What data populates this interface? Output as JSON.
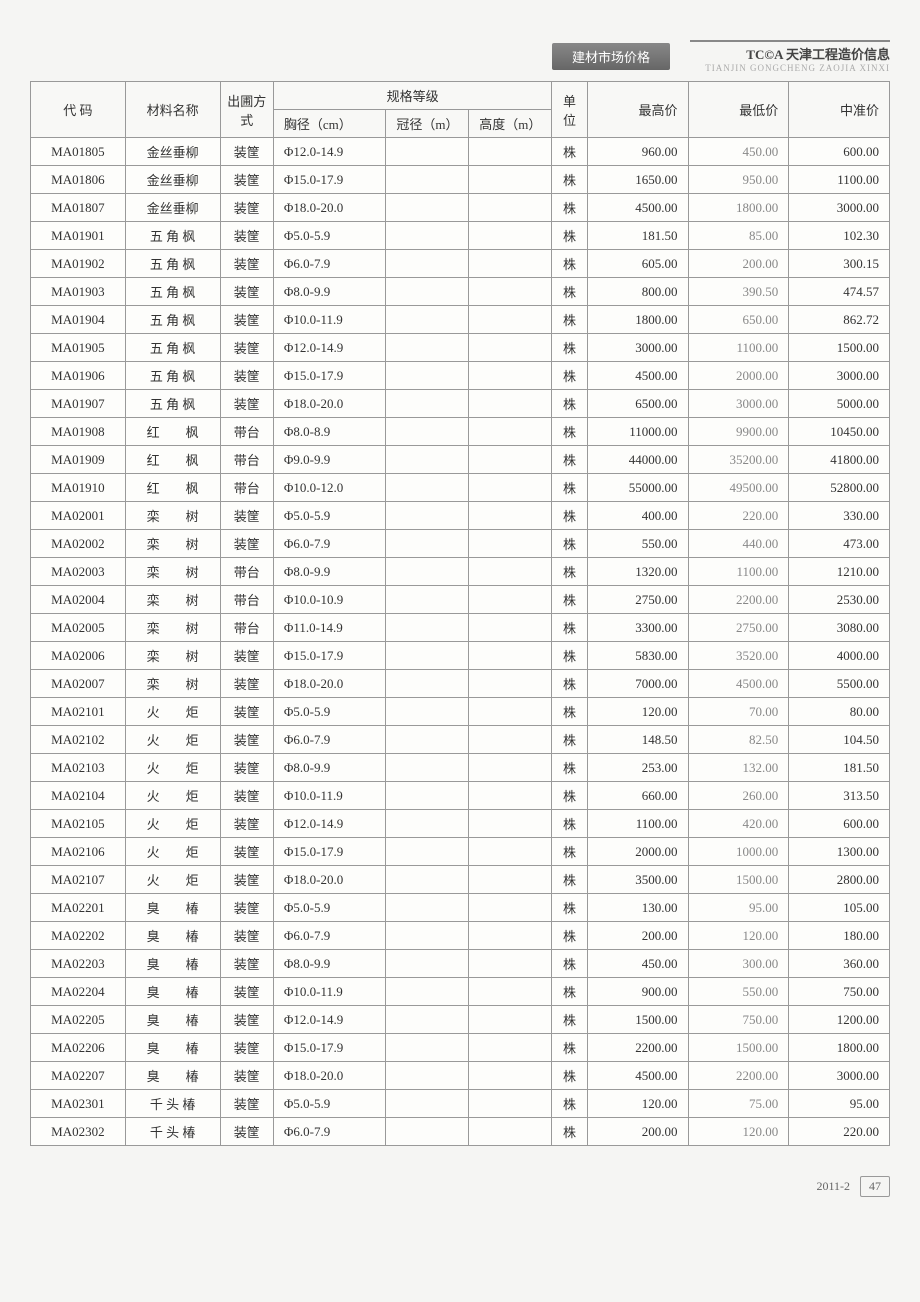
{
  "header": {
    "tab_label": "建材市场价格",
    "brand": "TC©A 天津工程造价信息",
    "brand_sub": "TIANJIN GONGCHENG ZAOJIA XINXI"
  },
  "table": {
    "headers": {
      "code": "代 码",
      "name": "材料名称",
      "method": "出圃方式",
      "spec_group": "规格等级",
      "spec1": "胸径（cm）",
      "spec2": "冠径（m）",
      "spec3": "高度（m）",
      "unit": "单位",
      "high": "最高价",
      "low": "最低价",
      "mid": "中准价"
    },
    "rows": [
      {
        "code": "MA01805",
        "name": "金丝垂柳",
        "name_spaced": false,
        "method": "装筐",
        "spec1": "Φ12.0-14.9",
        "unit": "株",
        "high": "960.00",
        "low": "450.00",
        "mid": "600.00"
      },
      {
        "code": "MA01806",
        "name": "金丝垂柳",
        "name_spaced": false,
        "method": "装筐",
        "spec1": "Φ15.0-17.9",
        "unit": "株",
        "high": "1650.00",
        "low": "950.00",
        "mid": "1100.00"
      },
      {
        "code": "MA01807",
        "name": "金丝垂柳",
        "name_spaced": false,
        "method": "装筐",
        "spec1": "Φ18.0-20.0",
        "unit": "株",
        "high": "4500.00",
        "low": "1800.00",
        "mid": "3000.00"
      },
      {
        "code": "MA01901",
        "name": "五 角 枫",
        "name_spaced": false,
        "method": "装筐",
        "spec1": "Φ5.0-5.9",
        "unit": "株",
        "high": "181.50",
        "low": "85.00",
        "mid": "102.30"
      },
      {
        "code": "MA01902",
        "name": "五 角 枫",
        "name_spaced": false,
        "method": "装筐",
        "spec1": "Φ6.0-7.9",
        "unit": "株",
        "high": "605.00",
        "low": "200.00",
        "mid": "300.15"
      },
      {
        "code": "MA01903",
        "name": "五 角 枫",
        "name_spaced": false,
        "method": "装筐",
        "spec1": "Φ8.0-9.9",
        "unit": "株",
        "high": "800.00",
        "low": "390.50",
        "mid": "474.57"
      },
      {
        "code": "MA01904",
        "name": "五 角 枫",
        "name_spaced": false,
        "method": "装筐",
        "spec1": "Φ10.0-11.9",
        "unit": "株",
        "high": "1800.00",
        "low": "650.00",
        "mid": "862.72"
      },
      {
        "code": "MA01905",
        "name": "五 角 枫",
        "name_spaced": false,
        "method": "装筐",
        "spec1": "Φ12.0-14.9",
        "unit": "株",
        "high": "3000.00",
        "low": "1100.00",
        "mid": "1500.00"
      },
      {
        "code": "MA01906",
        "name": "五 角 枫",
        "name_spaced": false,
        "method": "装筐",
        "spec1": "Φ15.0-17.9",
        "unit": "株",
        "high": "4500.00",
        "low": "2000.00",
        "mid": "3000.00"
      },
      {
        "code": "MA01907",
        "name": "五 角 枫",
        "name_spaced": false,
        "method": "装筐",
        "spec1": "Φ18.0-20.0",
        "unit": "株",
        "high": "6500.00",
        "low": "3000.00",
        "mid": "5000.00"
      },
      {
        "code": "MA01908",
        "name": "红　　枫",
        "name_spaced": false,
        "method": "带台",
        "spec1": "Φ8.0-8.9",
        "unit": "株",
        "high": "11000.00",
        "low": "9900.00",
        "mid": "10450.00"
      },
      {
        "code": "MA01909",
        "name": "红　　枫",
        "name_spaced": false,
        "method": "带台",
        "spec1": "Φ9.0-9.9",
        "unit": "株",
        "high": "44000.00",
        "low": "35200.00",
        "mid": "41800.00"
      },
      {
        "code": "MA01910",
        "name": "红　　枫",
        "name_spaced": false,
        "method": "带台",
        "spec1": "Φ10.0-12.0",
        "unit": "株",
        "high": "55000.00",
        "low": "49500.00",
        "mid": "52800.00"
      },
      {
        "code": "MA02001",
        "name": "栾　　树",
        "name_spaced": false,
        "method": "装筐",
        "spec1": "Φ5.0-5.9",
        "unit": "株",
        "high": "400.00",
        "low": "220.00",
        "mid": "330.00"
      },
      {
        "code": "MA02002",
        "name": "栾　　树",
        "name_spaced": false,
        "method": "装筐",
        "spec1": "Φ6.0-7.9",
        "unit": "株",
        "high": "550.00",
        "low": "440.00",
        "mid": "473.00"
      },
      {
        "code": "MA02003",
        "name": "栾　　树",
        "name_spaced": false,
        "method": "带台",
        "spec1": "Φ8.0-9.9",
        "unit": "株",
        "high": "1320.00",
        "low": "1100.00",
        "mid": "1210.00"
      },
      {
        "code": "MA02004",
        "name": "栾　　树",
        "name_spaced": false,
        "method": "带台",
        "spec1": "Φ10.0-10.9",
        "unit": "株",
        "high": "2750.00",
        "low": "2200.00",
        "mid": "2530.00"
      },
      {
        "code": "MA02005",
        "name": "栾　　树",
        "name_spaced": false,
        "method": "带台",
        "spec1": "Φ11.0-14.9",
        "unit": "株",
        "high": "3300.00",
        "low": "2750.00",
        "mid": "3080.00"
      },
      {
        "code": "MA02006",
        "name": "栾　　树",
        "name_spaced": false,
        "method": "装筐",
        "spec1": "Φ15.0-17.9",
        "unit": "株",
        "high": "5830.00",
        "low": "3520.00",
        "mid": "4000.00"
      },
      {
        "code": "MA02007",
        "name": "栾　　树",
        "name_spaced": false,
        "method": "装筐",
        "spec1": "Φ18.0-20.0",
        "unit": "株",
        "high": "7000.00",
        "low": "4500.00",
        "mid": "5500.00"
      },
      {
        "code": "MA02101",
        "name": "火　　炬",
        "name_spaced": false,
        "method": "装筐",
        "spec1": "Φ5.0-5.9",
        "unit": "株",
        "high": "120.00",
        "low": "70.00",
        "mid": "80.00"
      },
      {
        "code": "MA02102",
        "name": "火　　炬",
        "name_spaced": false,
        "method": "装筐",
        "spec1": "Φ6.0-7.9",
        "unit": "株",
        "high": "148.50",
        "low": "82.50",
        "mid": "104.50"
      },
      {
        "code": "MA02103",
        "name": "火　　炬",
        "name_spaced": false,
        "method": "装筐",
        "spec1": "Φ8.0-9.9",
        "unit": "株",
        "high": "253.00",
        "low": "132.00",
        "mid": "181.50"
      },
      {
        "code": "MA02104",
        "name": "火　　炬",
        "name_spaced": false,
        "method": "装筐",
        "spec1": "Φ10.0-11.9",
        "unit": "株",
        "high": "660.00",
        "low": "260.00",
        "mid": "313.50"
      },
      {
        "code": "MA02105",
        "name": "火　　炬",
        "name_spaced": false,
        "method": "装筐",
        "spec1": "Φ12.0-14.9",
        "unit": "株",
        "high": "1100.00",
        "low": "420.00",
        "mid": "600.00"
      },
      {
        "code": "MA02106",
        "name": "火　　炬",
        "name_spaced": false,
        "method": "装筐",
        "spec1": "Φ15.0-17.9",
        "unit": "株",
        "high": "2000.00",
        "low": "1000.00",
        "mid": "1300.00"
      },
      {
        "code": "MA02107",
        "name": "火　　炬",
        "name_spaced": false,
        "method": "装筐",
        "spec1": "Φ18.0-20.0",
        "unit": "株",
        "high": "3500.00",
        "low": "1500.00",
        "mid": "2800.00"
      },
      {
        "code": "MA02201",
        "name": "臭　　椿",
        "name_spaced": false,
        "method": "装筐",
        "spec1": "Φ5.0-5.9",
        "unit": "株",
        "high": "130.00",
        "low": "95.00",
        "mid": "105.00"
      },
      {
        "code": "MA02202",
        "name": "臭　　椿",
        "name_spaced": false,
        "method": "装筐",
        "spec1": "Φ6.0-7.9",
        "unit": "株",
        "high": "200.00",
        "low": "120.00",
        "mid": "180.00"
      },
      {
        "code": "MA02203",
        "name": "臭　　椿",
        "name_spaced": false,
        "method": "装筐",
        "spec1": "Φ8.0-9.9",
        "unit": "株",
        "high": "450.00",
        "low": "300.00",
        "mid": "360.00"
      },
      {
        "code": "MA02204",
        "name": "臭　　椿",
        "name_spaced": false,
        "method": "装筐",
        "spec1": "Φ10.0-11.9",
        "unit": "株",
        "high": "900.00",
        "low": "550.00",
        "mid": "750.00"
      },
      {
        "code": "MA02205",
        "name": "臭　　椿",
        "name_spaced": false,
        "method": "装筐",
        "spec1": "Φ12.0-14.9",
        "unit": "株",
        "high": "1500.00",
        "low": "750.00",
        "mid": "1200.00"
      },
      {
        "code": "MA02206",
        "name": "臭　　椿",
        "name_spaced": false,
        "method": "装筐",
        "spec1": "Φ15.0-17.9",
        "unit": "株",
        "high": "2200.00",
        "low": "1500.00",
        "mid": "1800.00"
      },
      {
        "code": "MA02207",
        "name": "臭　　椿",
        "name_spaced": false,
        "method": "装筐",
        "spec1": "Φ18.0-20.0",
        "unit": "株",
        "high": "4500.00",
        "low": "2200.00",
        "mid": "3000.00"
      },
      {
        "code": "MA02301",
        "name": "千 头 椿",
        "name_spaced": false,
        "method": "装筐",
        "spec1": "Φ5.0-5.9",
        "unit": "株",
        "high": "120.00",
        "low": "75.00",
        "mid": "95.00"
      },
      {
        "code": "MA02302",
        "name": "千 头 椿",
        "name_spaced": false,
        "method": "装筐",
        "spec1": "Φ6.0-7.9",
        "unit": "株",
        "high": "200.00",
        "low": "120.00",
        "mid": "220.00"
      }
    ]
  },
  "footer": {
    "issue": "2011-2",
    "page": "47"
  }
}
